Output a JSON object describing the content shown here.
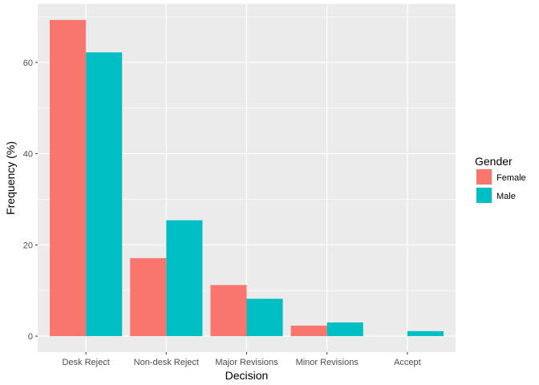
{
  "chart_data": {
    "type": "bar",
    "xlabel": "Decision",
    "ylabel": "Frequency (%)",
    "categories": [
      "Desk Reject",
      "Non-desk Reject",
      "Major Revisions",
      "Minor Revisions",
      "Accept"
    ],
    "series": [
      {
        "name": "Female",
        "color": "#F8766D",
        "values": [
          69.3,
          17.1,
          11.2,
          2.3,
          0
        ]
      },
      {
        "name": "Male",
        "color": "#00BFC4",
        "values": [
          62.2,
          25.4,
          8.2,
          3.0,
          1.1
        ]
      }
    ],
    "yticks": [
      0,
      20,
      40,
      60
    ],
    "ylim": [
      -3.5,
      72.8
    ],
    "grid": true,
    "legend": {
      "title": "Gender",
      "position": "right"
    },
    "panel_background": "#EBEBEB",
    "grid_color": "#FFFFFF"
  }
}
